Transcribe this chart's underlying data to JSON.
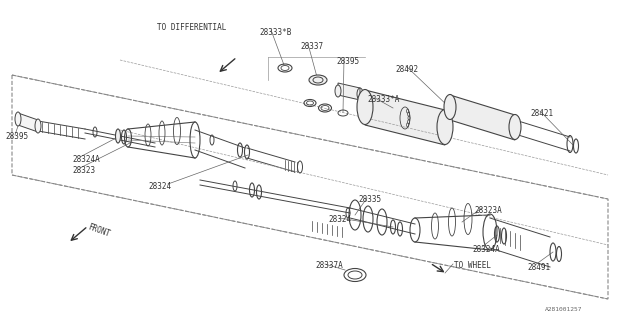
{
  "bg_color": "#ffffff",
  "lc": "#444444",
  "tc": "#333333",
  "fig_w": 6.4,
  "fig_h": 3.2,
  "labels": {
    "TO_DIFFERENTIAL": "TO DIFFERENTIAL",
    "28333B": "28333*B",
    "28337_t": "28337",
    "28395_t": "28395",
    "28492": "28492",
    "28333A": "28333*A",
    "28421": "28421",
    "28395_l": "28395",
    "28324A_l": "28324A",
    "28323": "28323",
    "28324_l": "28324",
    "28335": "28335",
    "28324_r": "28324",
    "28323A": "28323A",
    "28324A_r": "28324A",
    "28337A": "28337A",
    "TO_WHEEL": "TO WHEEL",
    "28491": "28491",
    "FRONT": "FRONT",
    "ref": "A281001257"
  }
}
